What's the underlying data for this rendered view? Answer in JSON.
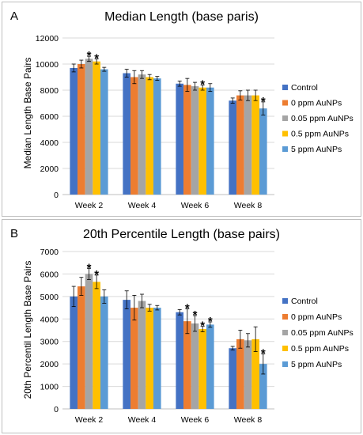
{
  "colors": {
    "Control": "#4472C4",
    "0 ppm AuNPs": "#ED7D31",
    "0.05 ppm AuNPs": "#A5A5A5",
    "0.5 ppm AuNPs": "#FFC000",
    "5 ppm AuNPs": "#5B9BD5"
  },
  "panels": [
    {
      "letter": "A",
      "chart_data": {
        "type": "bar",
        "title": "Median Length (base paris)",
        "xlabel": "",
        "ylabel": "Median Length Base Pairs",
        "ylim": [
          0,
          12000
        ],
        "yticks": [
          "0",
          "2000",
          "4000",
          "6000",
          "8000",
          "10000",
          "12000"
        ],
        "categories": [
          "Week 2",
          "Week 4",
          "Week 6",
          "Week 8"
        ],
        "legend_position": "right",
        "grid": true,
        "series": [
          {
            "name": "Control",
            "values": [
              9700,
              9300,
              8500,
              7200
            ],
            "errors": [
              300,
              300,
              200,
              200
            ],
            "stars": [
              false,
              false,
              false,
              false
            ]
          },
          {
            "name": "0 ppm AuNPs",
            "values": [
              10000,
              9000,
              8400,
              7600
            ],
            "errors": [
              300,
              500,
              500,
              350
            ],
            "stars": [
              false,
              false,
              false,
              false
            ]
          },
          {
            "name": "0.05 ppm AuNPs",
            "values": [
              10400,
              9200,
              8300,
              7600
            ],
            "errors": [
              200,
              300,
              300,
              400
            ],
            "stars": [
              true,
              false,
              false,
              false
            ]
          },
          {
            "name": "0.5 ppm AuNPs",
            "values": [
              10200,
              9000,
              8200,
              7600
            ],
            "errors": [
              200,
              200,
              200,
              400
            ],
            "stars": [
              true,
              false,
              true,
              false
            ]
          },
          {
            "name": "5 ppm AuNPs",
            "values": [
              9600,
              8900,
              8200,
              6600
            ],
            "errors": [
              150,
              150,
              300,
              500
            ],
            "stars": [
              false,
              false,
              false,
              true
            ]
          }
        ]
      }
    },
    {
      "letter": "B",
      "chart_data": {
        "type": "bar",
        "title": "20th Percentile Length (base pairs)",
        "xlabel": "",
        "ylabel": "20th Percentil Length Base Pairs",
        "ylim": [
          0,
          7000
        ],
        "yticks": [
          "0",
          "1000",
          "2000",
          "3000",
          "4000",
          "5000",
          "6000",
          "7000"
        ],
        "categories": [
          "Week 2",
          "Week 4",
          "Week 6",
          "Week 8"
        ],
        "legend_position": "right",
        "grid": true,
        "series": [
          {
            "name": "Control",
            "values": [
              5000,
              4850,
              4300,
              2700
            ],
            "errors": [
              450,
              400,
              120,
              80
            ],
            "stars": [
              false,
              false,
              false,
              false
            ]
          },
          {
            "name": "0 ppm AuNPs",
            "values": [
              5450,
              4500,
              3900,
              3100
            ],
            "errors": [
              400,
              550,
              550,
              400
            ],
            "stars": [
              false,
              false,
              true,
              false
            ]
          },
          {
            "name": "0.05 ppm AuNPs",
            "values": [
              6000,
              4800,
              3800,
              3050
            ],
            "errors": [
              250,
              300,
              350,
              300
            ],
            "stars": [
              true,
              false,
              true,
              false
            ]
          },
          {
            "name": "0.5 ppm AuNPs",
            "values": [
              5650,
              4500,
              3550,
              3100
            ],
            "errors": [
              300,
              150,
              120,
              550
            ],
            "stars": [
              true,
              false,
              true,
              false
            ]
          },
          {
            "name": "5 ppm AuNPs",
            "values": [
              5000,
              4500,
              3750,
              2000
            ],
            "errors": [
              300,
              100,
              120,
              450
            ],
            "stars": [
              false,
              false,
              true,
              true
            ]
          }
        ]
      }
    }
  ]
}
